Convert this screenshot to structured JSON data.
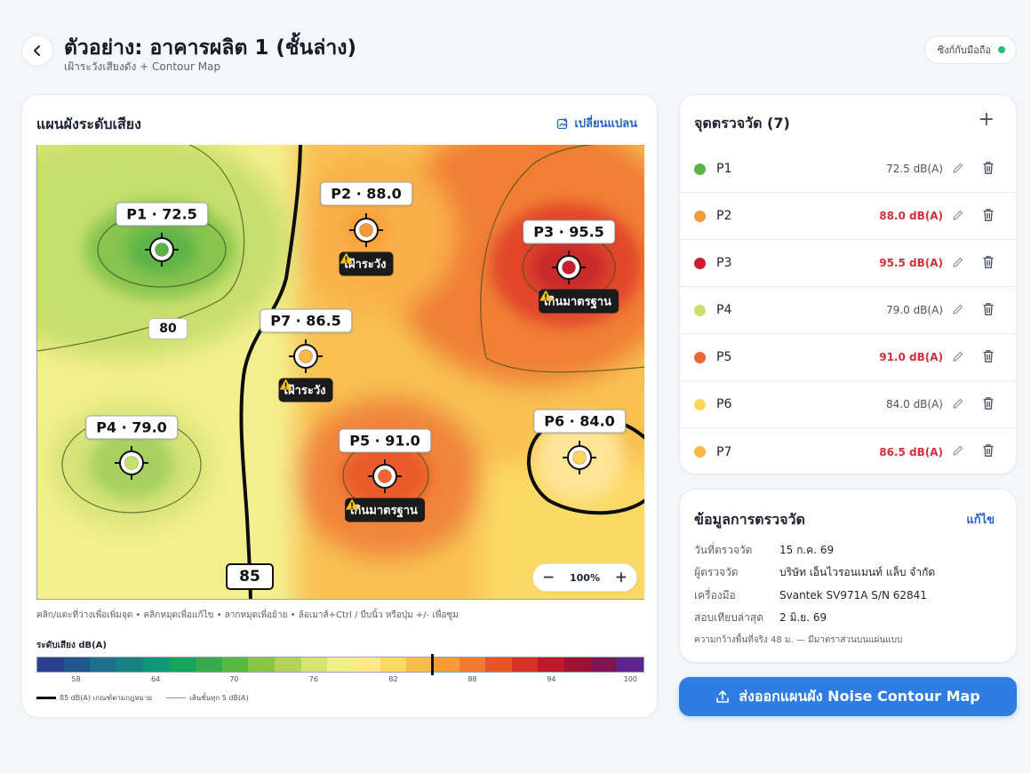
{
  "header": {
    "title": "ตัวอย่าง: อาคารผลิต 1 (ชั้นล่าง)",
    "subtitle": "เฝ้าระวังเสียงดัง + Contour Map",
    "sync_label": "ซิงก์กับมือถือ"
  },
  "map": {
    "title": "แผนผังระดับเสียง",
    "change_plan_label": "เปลี่ยนแปลน",
    "hint": "คลิก/แตะที่ว่างเพื่อเพิ่มจุด • คลิกหมุดเพื่อแก้ไข • ลากหมุดเพื่อย้าย • ล้อเมาส์+Ctrl / บีบนิ้ว หรือปุ่ม +/- เพื่อซูม",
    "zoom_label": "100%",
    "contour_labels": [
      "80",
      "85"
    ],
    "markers": [
      {
        "label": "P1 · 72.5",
        "color": "#5cb346"
      },
      {
        "label": "P2 · 88.0",
        "color": "#f59a36",
        "badge": "เฝ้าระวัง"
      },
      {
        "label": "P3 · 95.5",
        "color": "#cc1f2d",
        "badge": "เกินมาตรฐาน"
      },
      {
        "label": "P4 · 79.0",
        "color": "#c6e06a"
      },
      {
        "label": "P5 · 91.0",
        "color": "#ee6633",
        "badge": "เกินมาตรฐาน"
      },
      {
        "label": "P6 · 84.0",
        "color": "#fcd759"
      },
      {
        "label": "P7 · 86.5",
        "color": "#f8b648",
        "badge": "เฝ้าระวัง"
      }
    ]
  },
  "legend": {
    "title": "ระดับเสียง dB(A)",
    "ticks": [
      "58",
      "64",
      "70",
      "76",
      "82",
      "88",
      "94",
      "100"
    ],
    "colors": [
      "#2b3f8c",
      "#22568f",
      "#1c6f8f",
      "#168485",
      "#14957a",
      "#1aa25e",
      "#35ac49",
      "#58b844",
      "#86c545",
      "#b2d25a",
      "#d4e372",
      "#eef08a",
      "#fde98b",
      "#fbd863",
      "#f9bc4a",
      "#f69a37",
      "#f07a2f",
      "#e6542b",
      "#d63327",
      "#bf1a2b",
      "#9e1232",
      "#7d1650",
      "#5d2490"
    ],
    "marker_value": 85,
    "key_legal": "85 dB(A) เกณฑ์ตามกฎหมาย",
    "key_contour": "เส้นชั้นทุก 5 dB(A)"
  },
  "points": {
    "title": "จุดตรวจวัด (7)",
    "items": [
      {
        "name": "P1",
        "value": "72.5 dB(A)",
        "color": "#5cb346",
        "alert": false
      },
      {
        "name": "P2",
        "value": "88.0 dB(A)",
        "color": "#f59a36",
        "alert": true
      },
      {
        "name": "P3",
        "value": "95.5 dB(A)",
        "color": "#cc1f2d",
        "alert": true
      },
      {
        "name": "P4",
        "value": "79.0 dB(A)",
        "color": "#c6e06a",
        "alert": false
      },
      {
        "name": "P5",
        "value": "91.0 dB(A)",
        "color": "#ee6633",
        "alert": true
      },
      {
        "name": "P6",
        "value": "84.0 dB(A)",
        "color": "#fcd759",
        "alert": false
      },
      {
        "name": "P7",
        "value": "86.5 dB(A)",
        "color": "#f8b648",
        "alert": true
      }
    ]
  },
  "info": {
    "title": "ข้อมูลการตรวจวัด",
    "edit_label": "แก้ไข",
    "rows": [
      {
        "label": "วันที่ตรวจวัด",
        "value": "15 ก.ค. 69"
      },
      {
        "label": "ผู้ตรวจวัด",
        "value": "บริษัท เอ็นไวรอนเมนท์ แล็บ จำกัด"
      },
      {
        "label": "เครื่องมือ",
        "value": "Svantek SV971A S/N 62841"
      },
      {
        "label": "สอบเทียบล่าสุด",
        "value": "2 มิ.ย. 69"
      }
    ],
    "note": "ความกว้างพื้นที่จริง 48 ม. — มีมาตราส่วนบนแผ่นแบบ"
  },
  "export_label": "ส่งออกแผนผัง Noise Contour Map"
}
